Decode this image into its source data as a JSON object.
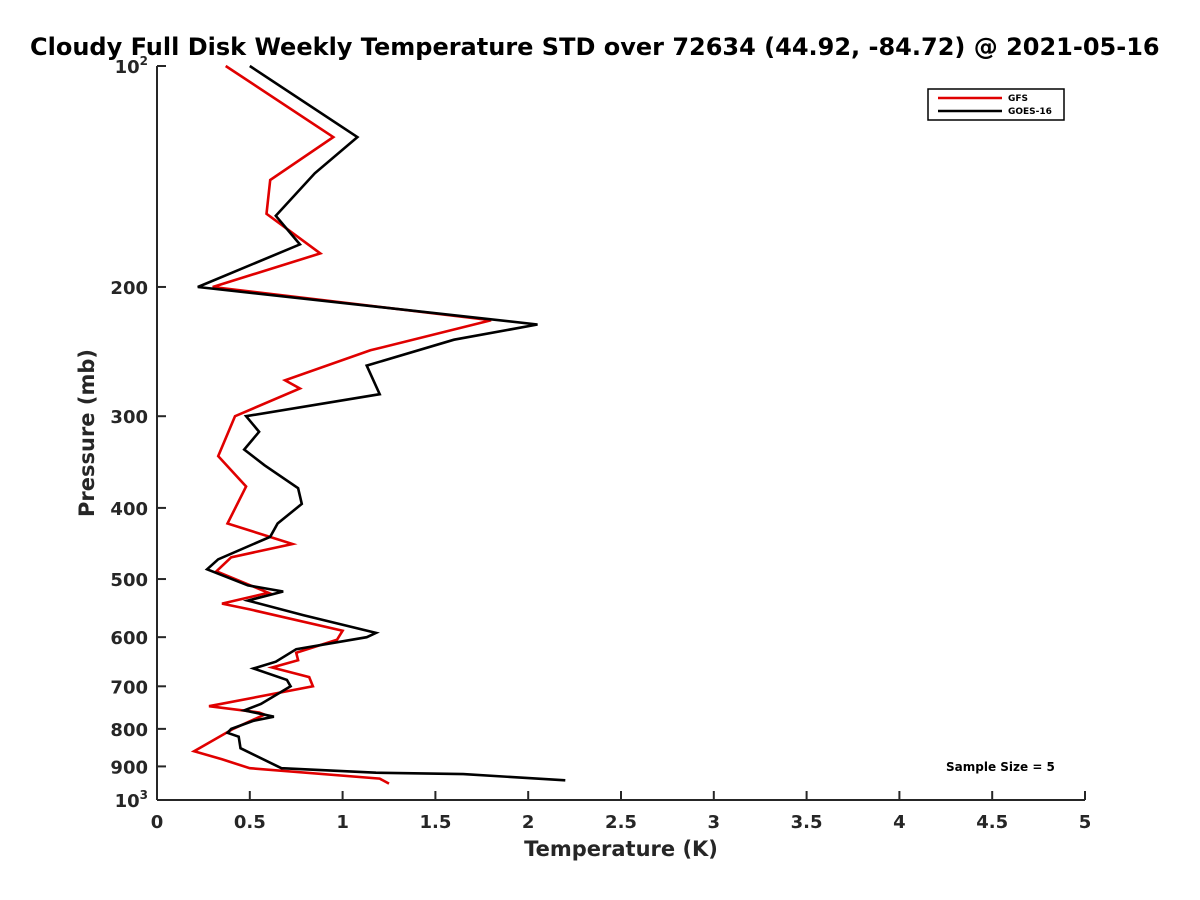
{
  "chart_data": {
    "type": "line",
    "title": "Cloudy Full Disk Weekly Temperature STD over 72634 (44.92, -84.72) @ 2021-05-16",
    "xlabel": "Temperature (K)",
    "ylabel": "Pressure (mb)",
    "xlim": [
      0,
      5
    ],
    "ylim": [
      100,
      1000
    ],
    "yscale": "log",
    "y_reversed": true,
    "grid": false,
    "legend_position": "top-right",
    "x_ticks": [
      "0",
      "0.5",
      "1",
      "1.5",
      "2",
      "2.5",
      "3",
      "3.5",
      "4",
      "4.5",
      "5"
    ],
    "y_ticks": [
      {
        "value": 100,
        "base": "10",
        "exp": "2"
      },
      {
        "value": 200,
        "label": "200"
      },
      {
        "value": 300,
        "label": "300"
      },
      {
        "value": 400,
        "label": "400"
      },
      {
        "value": 500,
        "label": "500"
      },
      {
        "value": 600,
        "label": "600"
      },
      {
        "value": 700,
        "label": "700"
      },
      {
        "value": 800,
        "label": "800"
      },
      {
        "value": 900,
        "label": "900"
      },
      {
        "value": 1000,
        "base": "10",
        "exp": "3"
      }
    ],
    "annotation": "Sample Size = 5",
    "series": [
      {
        "name": "GFS",
        "color": "#e00000",
        "points": [
          [
            0.37,
            100
          ],
          [
            0.95,
            125
          ],
          [
            0.61,
            143
          ],
          [
            0.59,
            159
          ],
          [
            0.88,
            180
          ],
          [
            0.3,
            200
          ],
          [
            1.8,
            222
          ],
          [
            1.15,
            244
          ],
          [
            0.69,
            268
          ],
          [
            0.77,
            275
          ],
          [
            0.42,
            300
          ],
          [
            0.33,
            340
          ],
          [
            0.48,
            374
          ],
          [
            0.38,
            420
          ],
          [
            0.73,
            448
          ],
          [
            0.4,
            467
          ],
          [
            0.32,
            488
          ],
          [
            0.6,
            522
          ],
          [
            0.35,
            540
          ],
          [
            0.5,
            550
          ],
          [
            1.0,
            588
          ],
          [
            0.97,
            605
          ],
          [
            0.75,
            630
          ],
          [
            0.76,
            645
          ],
          [
            0.62,
            660
          ],
          [
            0.82,
            680
          ],
          [
            0.84,
            700
          ],
          [
            0.28,
            745
          ],
          [
            0.55,
            760
          ],
          [
            0.58,
            765
          ],
          [
            0.41,
            800
          ],
          [
            0.2,
            858
          ],
          [
            0.35,
            880
          ],
          [
            0.5,
            905
          ],
          [
            1.2,
            935
          ],
          [
            1.25,
            950
          ]
        ]
      },
      {
        "name": "GOES-16",
        "color": "#000000",
        "points": [
          [
            0.5,
            100
          ],
          [
            1.08,
            125
          ],
          [
            0.85,
            140
          ],
          [
            0.64,
            160
          ],
          [
            0.77,
            175
          ],
          [
            0.22,
            200
          ],
          [
            2.05,
            225
          ],
          [
            1.6,
            236
          ],
          [
            1.13,
            256
          ],
          [
            1.2,
            280
          ],
          [
            0.48,
            300
          ],
          [
            0.55,
            315
          ],
          [
            0.47,
            333
          ],
          [
            0.58,
            350
          ],
          [
            0.76,
            376
          ],
          [
            0.78,
            395
          ],
          [
            0.65,
            420
          ],
          [
            0.61,
            438
          ],
          [
            0.33,
            470
          ],
          [
            0.27,
            485
          ],
          [
            0.49,
            510
          ],
          [
            0.68,
            520
          ],
          [
            0.49,
            535
          ],
          [
            0.79,
            560
          ],
          [
            1.18,
            592
          ],
          [
            1.13,
            600
          ],
          [
            0.75,
            623
          ],
          [
            0.64,
            648
          ],
          [
            0.52,
            662
          ],
          [
            0.7,
            686
          ],
          [
            0.72,
            700
          ],
          [
            0.56,
            740
          ],
          [
            0.47,
            755
          ],
          [
            0.63,
            770
          ],
          [
            0.52,
            780
          ],
          [
            0.4,
            800
          ],
          [
            0.38,
            810
          ],
          [
            0.44,
            820
          ],
          [
            0.45,
            850
          ],
          [
            0.67,
            905
          ],
          [
            1.18,
            918
          ],
          [
            1.65,
            922
          ],
          [
            2.2,
            940
          ]
        ]
      }
    ]
  }
}
